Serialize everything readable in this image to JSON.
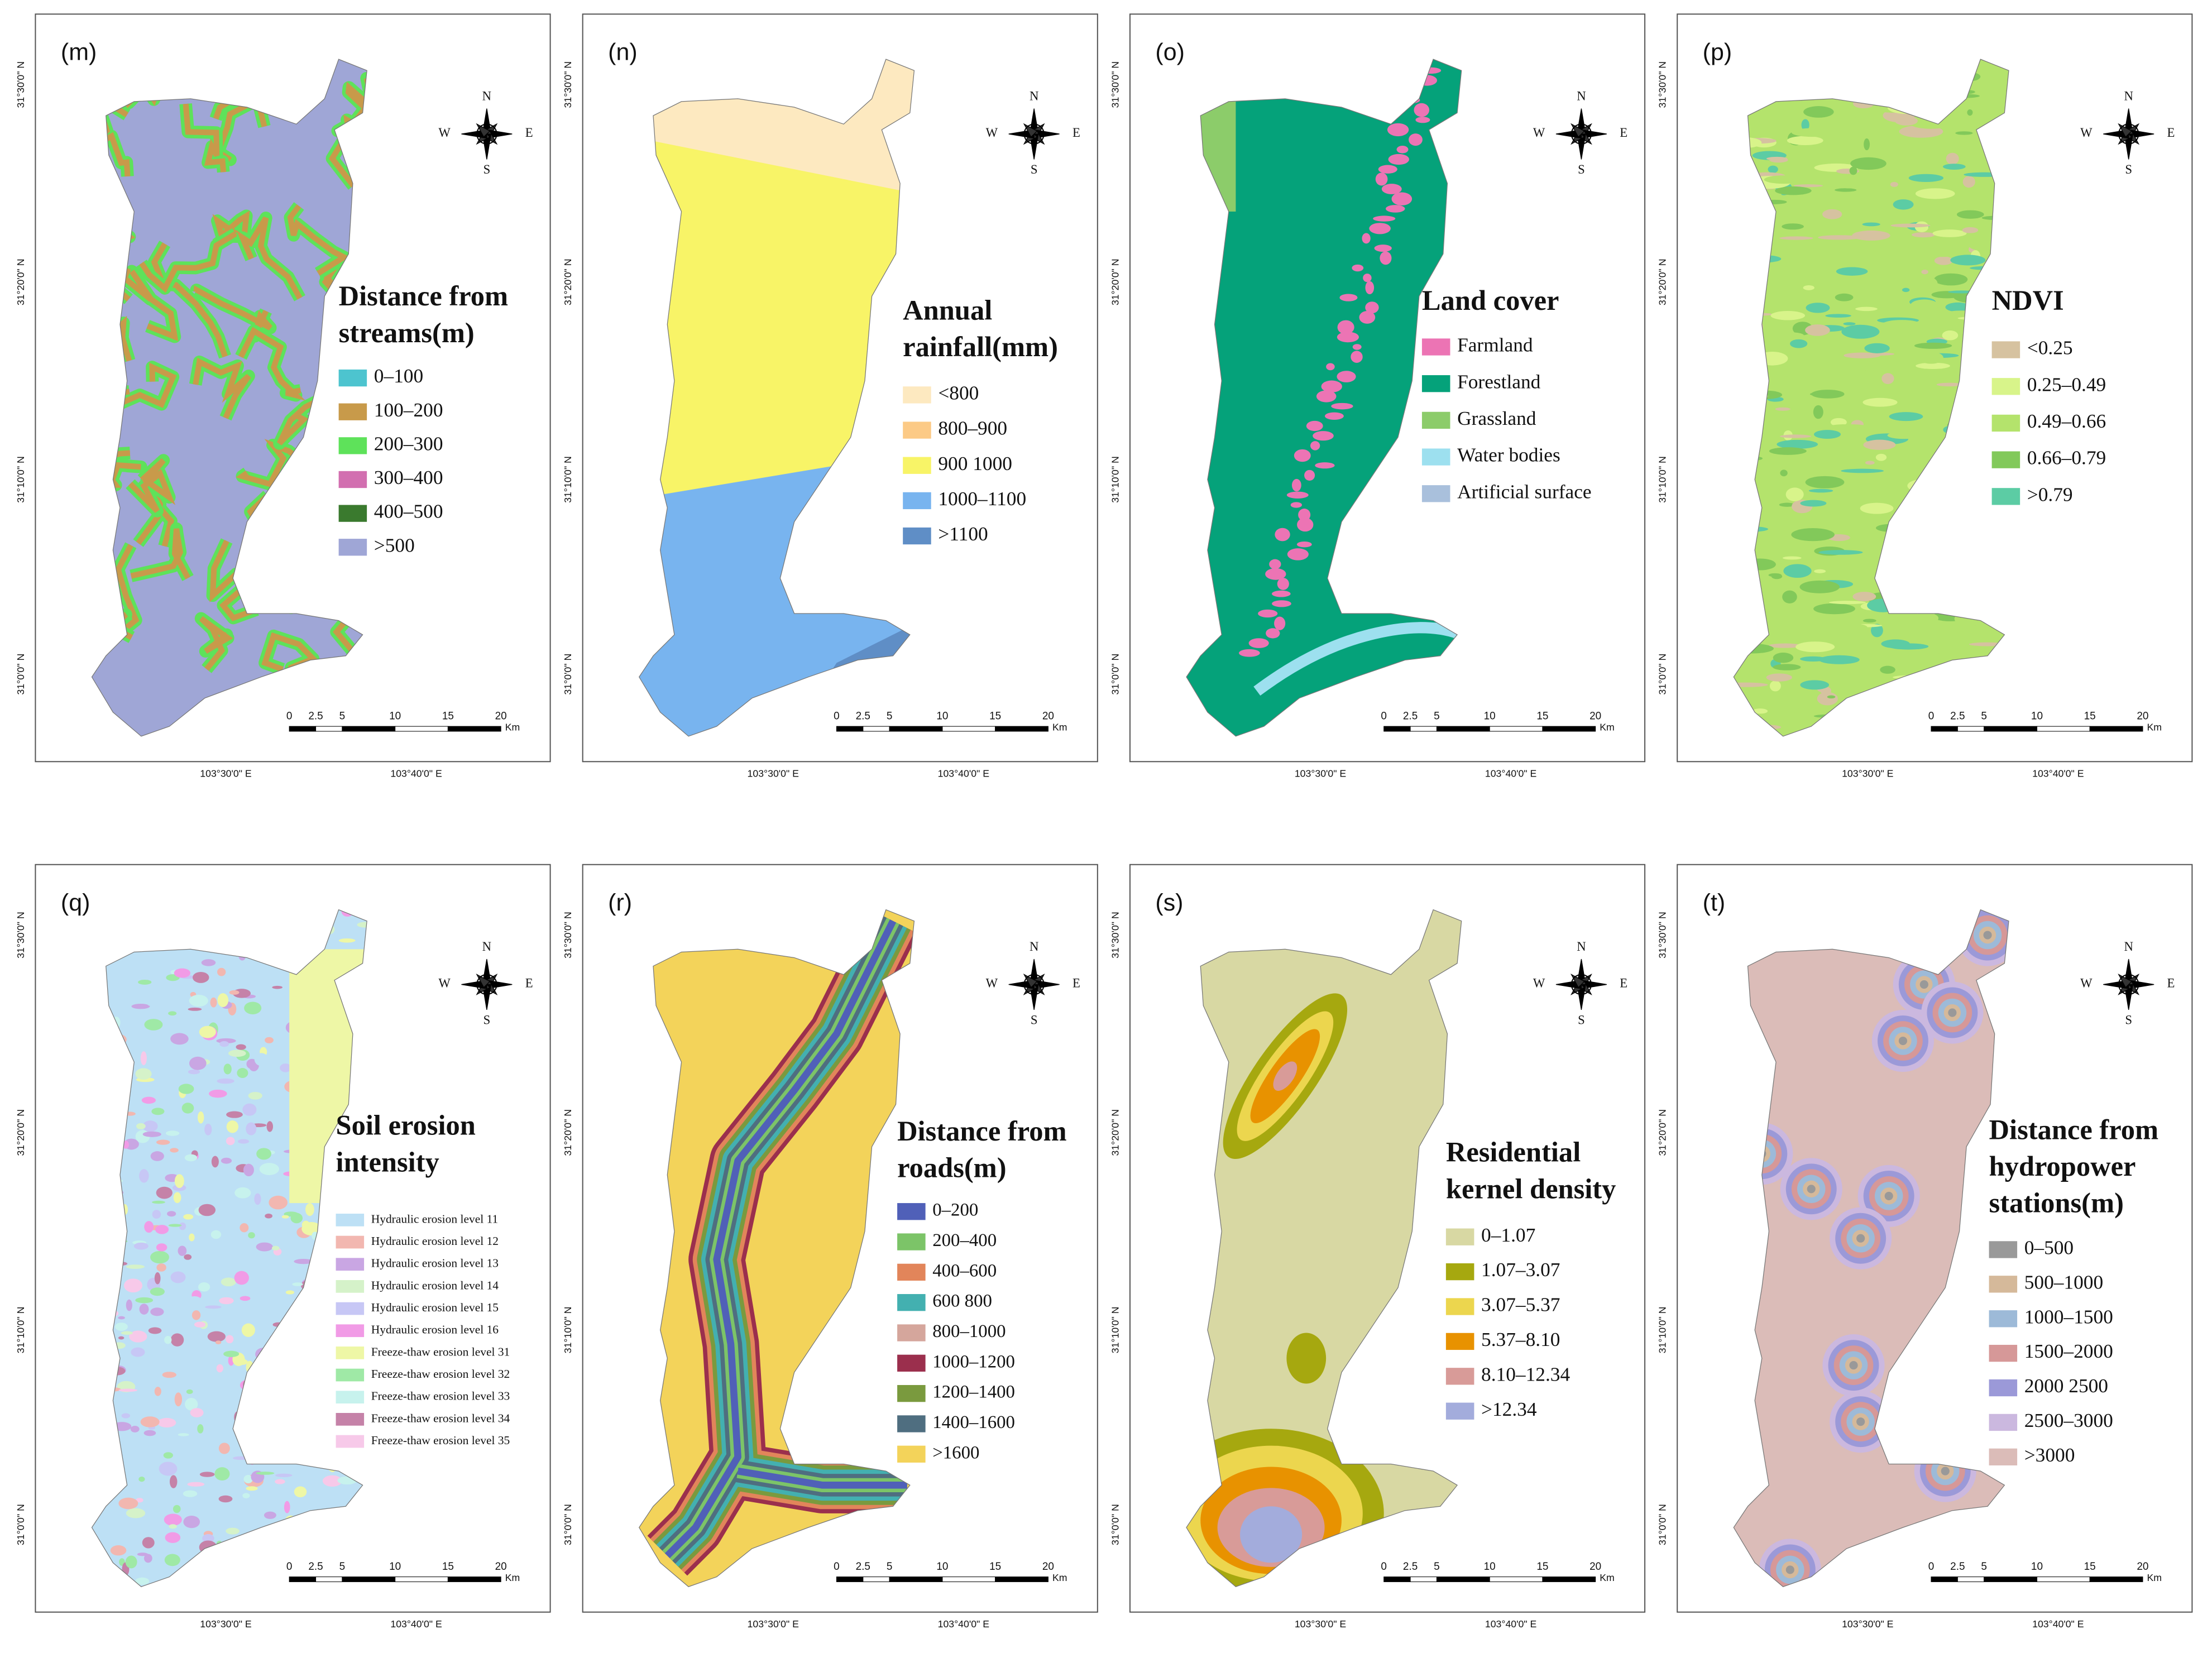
{
  "panels": [
    {
      "label": "(m)",
      "legend_title": [
        "Distance from",
        "streams(m)"
      ],
      "legend": [
        {
          "label": "0–100",
          "color": "#4dc4cf"
        },
        {
          "label": "100–200",
          "color": "#c89a4a"
        },
        {
          "label": "200–300",
          "color": "#5ee25a"
        },
        {
          "label": "300–400",
          "color": "#d26fb0"
        },
        {
          "label": "400–500",
          "color": "#3a7a2e"
        },
        {
          "label": ">500",
          "color": "#9fa6d6"
        }
      ]
    },
    {
      "label": "(n)",
      "legend_title": [
        "Annual",
        "rainfall(mm)"
      ],
      "legend": [
        {
          "label": "<800",
          "color": "#fde9c0"
        },
        {
          "label": "800–900",
          "color": "#fcca86"
        },
        {
          "label": "900 1000",
          "color": "#f8f467"
        },
        {
          "label": "1000–1100",
          "color": "#78b4ef"
        },
        {
          "label": ">1100",
          "color": "#5f8ec6"
        }
      ]
    },
    {
      "label": "(o)",
      "legend_title": [
        "Land cover"
      ],
      "legend": [
        {
          "label": "Farmland",
          "color": "#ec74b4"
        },
        {
          "label": "Forestland",
          "color": "#05a27a"
        },
        {
          "label": "Grassland",
          "color": "#8ccc6a"
        },
        {
          "label": "Water bodies",
          "color": "#9de0ef"
        },
        {
          "label": "Artificial surface",
          "color": "#a9c0dc"
        }
      ]
    },
    {
      "label": "(p)",
      "legend_title": [
        "NDVI"
      ],
      "legend": [
        {
          "label": "<0.25",
          "color": "#d6c2a0"
        },
        {
          "label": "0.25–0.49",
          "color": "#d8f48a"
        },
        {
          "label": "0.49–0.66",
          "color": "#b4e36c"
        },
        {
          "label": "0.66–0.79",
          "color": "#82c95a"
        },
        {
          "label": ">0.79",
          "color": "#5ccca4"
        }
      ]
    },
    {
      "label": "(q)",
      "legend_title": [
        "Soil erosion",
        "intensity"
      ],
      "legend": [
        {
          "label": "Hydraulic erosion level 11",
          "color": "#bde0f5"
        },
        {
          "label": "Hydraulic erosion level 12",
          "color": "#f2b7b0"
        },
        {
          "label": "Hydraulic erosion level 13",
          "color": "#c9a6e3"
        },
        {
          "label": "Hydraulic erosion level 14",
          "color": "#d5f2c9"
        },
        {
          "label": "Hydraulic erosion level 15",
          "color": "#c7c7f5"
        },
        {
          "label": "Hydraulic erosion level 16",
          "color": "#f19be6"
        },
        {
          "label": "Freeze-thaw erosion level 31",
          "color": "#eef7a6"
        },
        {
          "label": "Freeze-thaw erosion level 32",
          "color": "#9fe9a6"
        },
        {
          "label": "Freeze-thaw erosion level 33",
          "color": "#c7f2ed"
        },
        {
          "label": "Freeze-thaw erosion level 34",
          "color": "#c582a8"
        },
        {
          "label": "Freeze-thaw erosion level 35",
          "color": "#f7c9e9"
        }
      ]
    },
    {
      "label": "(r)",
      "legend_title": [
        "Distance from",
        "roads(m)"
      ],
      "legend": [
        {
          "label": "0–200",
          "color": "#5060b8"
        },
        {
          "label": "200–400",
          "color": "#7cc468"
        },
        {
          "label": "400–600",
          "color": "#e2855a"
        },
        {
          "label": "600 800",
          "color": "#43b0b0"
        },
        {
          "label": "800–1000",
          "color": "#d5a69c"
        },
        {
          "label": "1000–1200",
          "color": "#9b2f4d"
        },
        {
          "label": "1200–1400",
          "color": "#7a9a3e"
        },
        {
          "label": "1400–1600",
          "color": "#4f6e80"
        },
        {
          "label": ">1600",
          "color": "#f3d35a"
        }
      ]
    },
    {
      "label": "(s)",
      "legend_title": [
        "Residential",
        "kernel density"
      ],
      "legend": [
        {
          "label": "0–1.07",
          "color": "#d8d8a3"
        },
        {
          "label": "1.07–3.07",
          "color": "#a6a80f"
        },
        {
          "label": "3.07–5.37",
          "color": "#ecd64e"
        },
        {
          "label": "5.37–8.10",
          "color": "#e89200"
        },
        {
          "label": "8.10–12.34",
          "color": "#d89b98"
        },
        {
          "label": ">12.34",
          "color": "#a3acdc"
        }
      ]
    },
    {
      "label": "(t)",
      "legend_title": [
        "Distance from",
        "hydropower",
        "stations(m)"
      ],
      "legend": [
        {
          "label": "0–500",
          "color": "#999999"
        },
        {
          "label": "500–1000",
          "color": "#d5b99a"
        },
        {
          "label": "1000–1500",
          "color": "#9dbad8"
        },
        {
          "label": "1500–2000",
          "color": "#d69898"
        },
        {
          "label": "2000 2500",
          "color": "#9b99d8"
        },
        {
          "label": "2500–3000",
          "color": "#cbb8df"
        },
        {
          "label": ">3000",
          "color": "#dbbcb8"
        }
      ]
    }
  ],
  "compass": {
    "n": "N",
    "s": "S",
    "w": "W",
    "e": "E"
  },
  "scale": {
    "ticks": [
      0,
      2.5,
      5,
      10,
      15,
      20
    ],
    "unit": "Km"
  },
  "lat_labels": [
    "31°30'0\" N",
    "31°20'0\" N",
    "31°10'0\" N",
    "31°0'0\" N"
  ],
  "lon_labels": [
    "103°30'0\" E",
    "103°40'0\" E"
  ]
}
